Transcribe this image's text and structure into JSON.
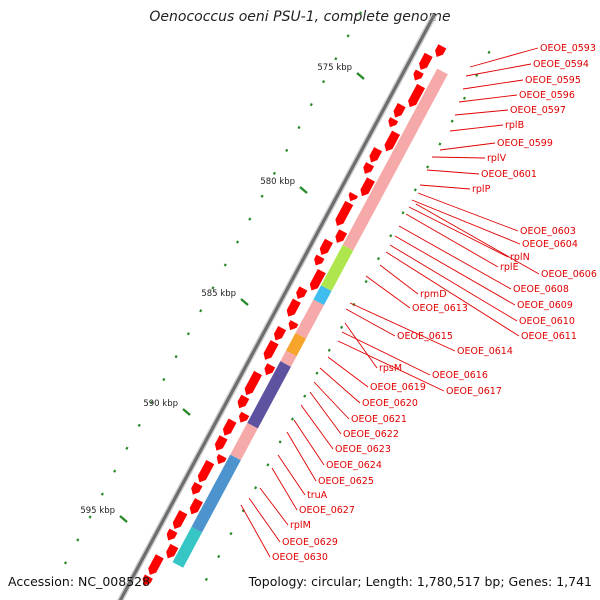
{
  "title": "Oenococcus oeni PSU-1, complete genome",
  "footer": {
    "accession": "Accession: NC_008528",
    "topology": "Topology: circular; Length: 1,780,517 bp; Genes: 1,741"
  },
  "colors": {
    "gene": "#ff0000",
    "rna": "#f08080",
    "label": "#e00000",
    "tick": "#2a8a2a",
    "backbone": "#6e6e6e",
    "categories": [
      "#f4a0a0",
      "#a6e33b",
      "#2ab6ec",
      "#f59a15",
      "#4a3f96",
      "#3a87c8",
      "#20c0c0"
    ]
  },
  "kbp_ticks": [
    "575 kbp",
    "580 kbp",
    "585 kbp",
    "590 kbp",
    "595 kbp"
  ],
  "gene_labels": [
    "OEOE_0593",
    "OEOE_0594",
    "OEOE_0595",
    "OEOE_0596",
    "OEOE_0597",
    "rplB",
    "OEOE_0599",
    "rplV",
    "OEOE_0601",
    "rplP",
    "OEOE_0603",
    "OEOE_0604",
    "rplN",
    "rplE",
    "OEOE_0606",
    "OEOE_0608",
    "OEOE_0609",
    "OEOE_0610",
    "OEOE_0611",
    "rpmD",
    "OEOE_0613",
    "OEOE_0614",
    "OEOE_0615",
    "rpsM",
    "OEOE_0616",
    "OEOE_0617",
    "OEOE_0619",
    "OEOE_0620",
    "OEOE_0621",
    "OEOE_0622",
    "OEOE_0623",
    "OEOE_0624",
    "OEOE_0625",
    "truA",
    "OEOE_0627",
    "rplM",
    "OEOE_0629",
    "OEOE_0630"
  ]
}
